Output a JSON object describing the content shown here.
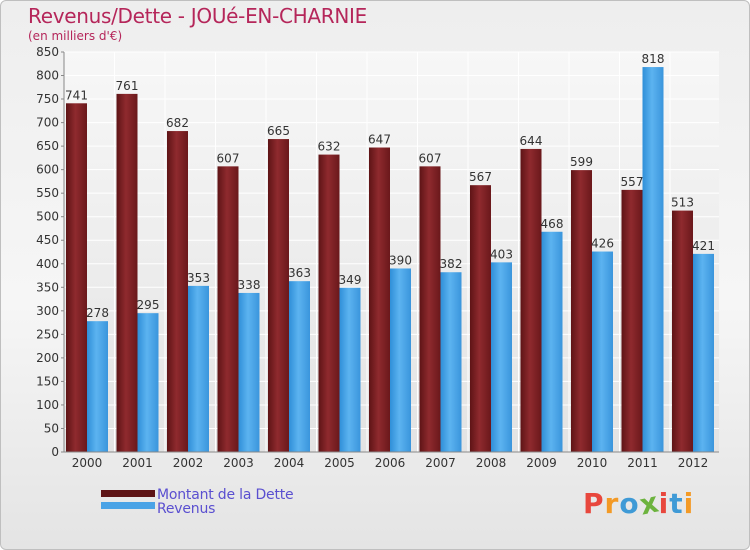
{
  "title": "Revenus/Dette - JOUé-EN-CHARNIE",
  "subtitle": "(en milliers d'€)",
  "chart_data": {
    "type": "bar",
    "categories": [
      "2000",
      "2001",
      "2002",
      "2003",
      "2004",
      "2005",
      "2006",
      "2007",
      "2008",
      "2009",
      "2010",
      "2011",
      "2012"
    ],
    "series": [
      {
        "name": "Montant de la Dette",
        "values": [
          741,
          761,
          682,
          607,
          665,
          632,
          647,
          607,
          567,
          644,
          599,
          557,
          513
        ],
        "color": "#7a1f24"
      },
      {
        "name": "Revenus",
        "values": [
          278,
          295,
          353,
          338,
          363,
          349,
          390,
          382,
          403,
          468,
          426,
          818,
          421
        ],
        "color": "#4aa3e6"
      }
    ],
    "ylim": [
      0,
      850
    ],
    "yticks": [
      0,
      50,
      100,
      150,
      200,
      250,
      300,
      350,
      400,
      450,
      500,
      550,
      600,
      650,
      700,
      750,
      800,
      850
    ],
    "grid": true,
    "legend": "bottom-left",
    "xlabel": "",
    "ylabel": ""
  },
  "logo": {
    "text": "Proxiti",
    "letter_colors": [
      "#e8473d",
      "#f39a26",
      "#3f9ad6",
      "#6cb33e",
      "#e8473d",
      "#3f9ad6",
      "#f39a26"
    ]
  }
}
